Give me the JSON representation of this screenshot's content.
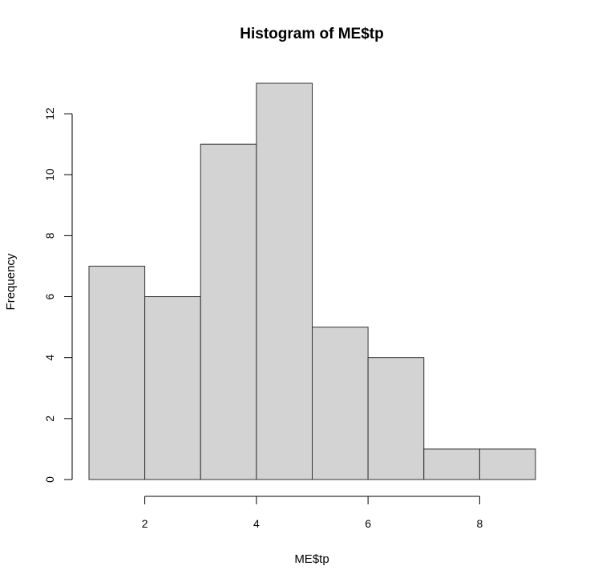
{
  "chart_data": {
    "type": "bar",
    "title": "Histogram of ME$tp",
    "xlabel": "ME$tp",
    "ylabel": "Frequency",
    "bins": [
      {
        "x0": 1,
        "x1": 2,
        "value": 7
      },
      {
        "x0": 2,
        "x1": 3,
        "value": 6
      },
      {
        "x0": 3,
        "x1": 4,
        "value": 11
      },
      {
        "x0": 4,
        "x1": 5,
        "value": 13
      },
      {
        "x0": 5,
        "x1": 6,
        "value": 5
      },
      {
        "x0": 6,
        "x1": 7,
        "value": 4
      },
      {
        "x0": 7,
        "x1": 8,
        "value": 1
      },
      {
        "x0": 8,
        "x1": 9,
        "value": 1
      }
    ],
    "xlim": [
      1,
      9
    ],
    "ylim": [
      0,
      13
    ],
    "x_ticks": [
      2,
      4,
      6,
      8
    ],
    "y_ticks": [
      0,
      2,
      4,
      6,
      8,
      10,
      12
    ],
    "grid": false,
    "bar_color": "#d3d3d3",
    "bar_border_color": "#333333"
  }
}
